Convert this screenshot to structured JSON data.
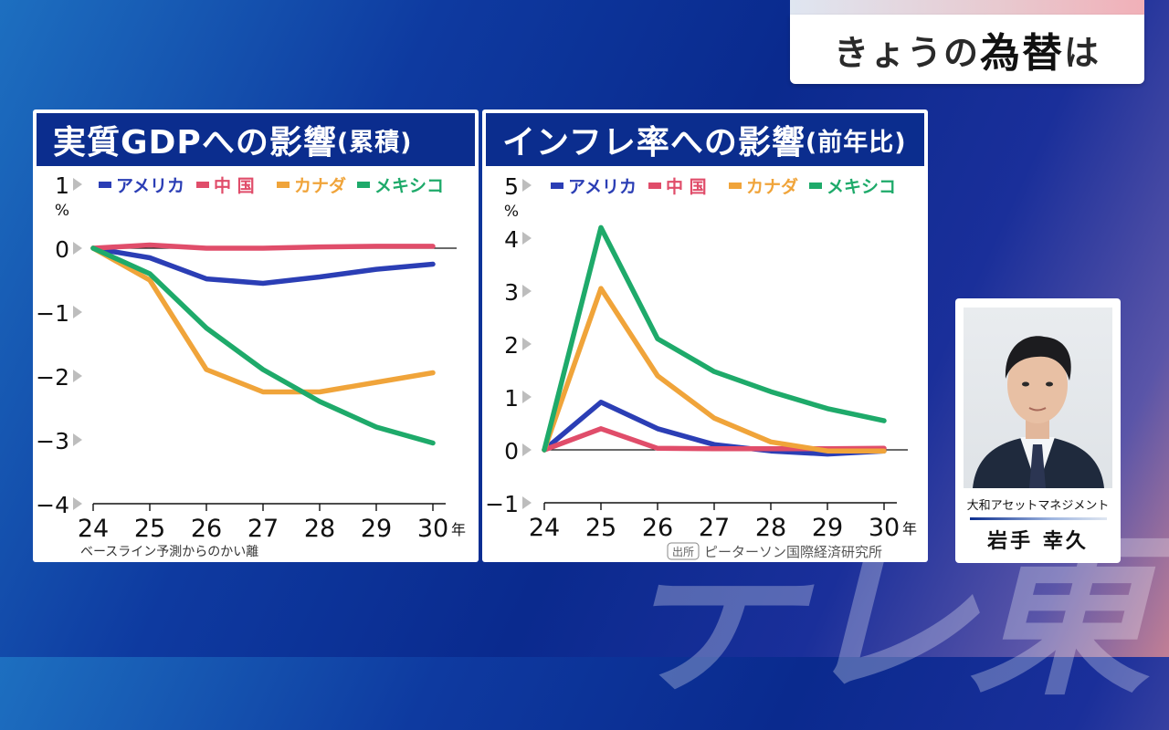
{
  "header": {
    "title_pre": "きょうの",
    "title_big": "為替",
    "title_post": "は"
  },
  "speaker": {
    "company": "大和アセットマネジメント",
    "name": "岩手 幸久"
  },
  "watermark": "テレ東",
  "chart_data": [
    {
      "type": "line",
      "title": "実質GDPへの影響",
      "title_paren": "(累積)",
      "unit_label": "%",
      "x_suffix": "年",
      "x": [
        "24",
        "25",
        "26",
        "27",
        "28",
        "29",
        "30"
      ],
      "ylim": [
        -4,
        1
      ],
      "yticks": [
        "1",
        "0",
        "−1",
        "−2",
        "−3",
        "−4"
      ],
      "series": [
        {
          "name": "アメリカ",
          "color": "#2b3eb5",
          "values": [
            0,
            -0.15,
            -0.48,
            -0.55,
            -0.45,
            -0.33,
            -0.25
          ]
        },
        {
          "name": "中 国",
          "color": "#e04d6a",
          "values": [
            0,
            0.05,
            0.0,
            0.0,
            0.02,
            0.03,
            0.03
          ]
        },
        {
          "name": "カナダ",
          "color": "#f0a43a",
          "values": [
            0,
            -0.5,
            -1.9,
            -2.25,
            -2.25,
            -2.1,
            -1.95
          ]
        },
        {
          "name": "メキシコ",
          "color": "#1eaa6a",
          "values": [
            0,
            -0.4,
            -1.25,
            -1.9,
            -2.4,
            -2.8,
            -3.05
          ]
        }
      ],
      "footnote": "ベースライン予測からのかい離"
    },
    {
      "type": "line",
      "title": "インフレ率への影響",
      "title_paren": "(前年比)",
      "unit_label": "%",
      "x_suffix": "年",
      "x": [
        "24",
        "25",
        "26",
        "27",
        "28",
        "29",
        "30"
      ],
      "ylim": [
        -1,
        5
      ],
      "yticks": [
        "5",
        "4",
        "3",
        "2",
        "1",
        "0",
        "−1"
      ],
      "series": [
        {
          "name": "アメリカ",
          "color": "#2b3eb5",
          "values": [
            0,
            0.9,
            0.4,
            0.1,
            -0.02,
            -0.08,
            -0.02
          ]
        },
        {
          "name": "中 国",
          "color": "#e04d6a",
          "values": [
            0,
            0.4,
            0.03,
            0.02,
            0.02,
            0.02,
            0.03
          ]
        },
        {
          "name": "カナダ",
          "color": "#f0a43a",
          "values": [
            0,
            3.05,
            1.4,
            0.6,
            0.15,
            -0.02,
            -0.02
          ]
        },
        {
          "name": "メキシコ",
          "color": "#1eaa6a",
          "values": [
            0,
            4.2,
            2.1,
            1.48,
            1.1,
            0.78,
            0.55
          ]
        }
      ],
      "source_badge": "出所",
      "source": "ピーターソン国際経済研究所"
    }
  ]
}
